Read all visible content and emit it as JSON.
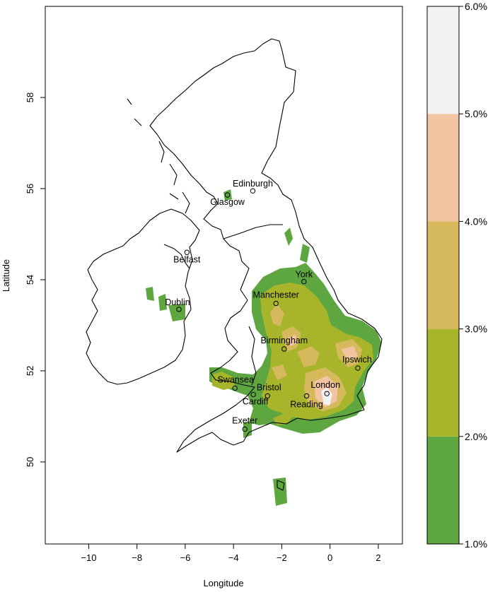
{
  "map": {
    "xlabel": "Longitude",
    "ylabel": "Latitude",
    "xlim": [
      -11.8,
      3.0
    ],
    "ylim": [
      48.2,
      60.0
    ],
    "xticks": [
      {
        "value": -10,
        "label": "−10"
      },
      {
        "value": -8,
        "label": "−8"
      },
      {
        "value": -6,
        "label": "−6"
      },
      {
        "value": -4,
        "label": "−4"
      },
      {
        "value": -2,
        "label": "−2"
      },
      {
        "value": 0,
        "label": "0"
      },
      {
        "value": 2,
        "label": "2"
      }
    ],
    "yticks": [
      {
        "value": 50,
        "label": "50"
      },
      {
        "value": 52,
        "label": "52"
      },
      {
        "value": 54,
        "label": "54"
      },
      {
        "value": 56,
        "label": "56"
      },
      {
        "value": 58,
        "label": "58"
      }
    ],
    "cities": [
      {
        "name": "Edinburgh",
        "lon": -3.2,
        "lat": 55.95
      },
      {
        "name": "Glasgow",
        "lon": -4.25,
        "lat": 55.86
      },
      {
        "name": "Belfast",
        "lon": -5.93,
        "lat": 54.6
      },
      {
        "name": "York",
        "lon": -1.08,
        "lat": 53.96
      },
      {
        "name": "Dublin",
        "lon": -6.26,
        "lat": 53.35
      },
      {
        "name": "Manchester",
        "lon": -2.24,
        "lat": 53.48
      },
      {
        "name": "Birmingham",
        "lon": -1.9,
        "lat": 52.48
      },
      {
        "name": "Ipswich",
        "lon": 1.15,
        "lat": 52.06
      },
      {
        "name": "Swansea",
        "lon": -3.94,
        "lat": 51.62
      },
      {
        "name": "London",
        "lon": -0.13,
        "lat": 51.5
      },
      {
        "name": "Bristol",
        "lon": -2.59,
        "lat": 51.45
      },
      {
        "name": "Cardiff",
        "lon": -3.18,
        "lat": 51.48
      },
      {
        "name": "Reading",
        "lon": -0.97,
        "lat": 51.45
      },
      {
        "name": "Exeter",
        "lon": -3.53,
        "lat": 50.72
      }
    ]
  },
  "legend": {
    "bands": [
      {
        "from": 1.0,
        "to": 2.0,
        "color": "#5ea640"
      },
      {
        "from": 2.0,
        "to": 3.0,
        "color": "#a8b52b"
      },
      {
        "from": 3.0,
        "to": 4.0,
        "color": "#d5b95c"
      },
      {
        "from": 4.0,
        "to": 5.0,
        "color": "#f2c4a2"
      },
      {
        "from": 5.0,
        "to": 6.0,
        "color": "#f2f2f2"
      }
    ],
    "labels": [
      "1.0%",
      "2.0%",
      "3.0%",
      "4.0%",
      "5.0%",
      "6.0%"
    ]
  }
}
